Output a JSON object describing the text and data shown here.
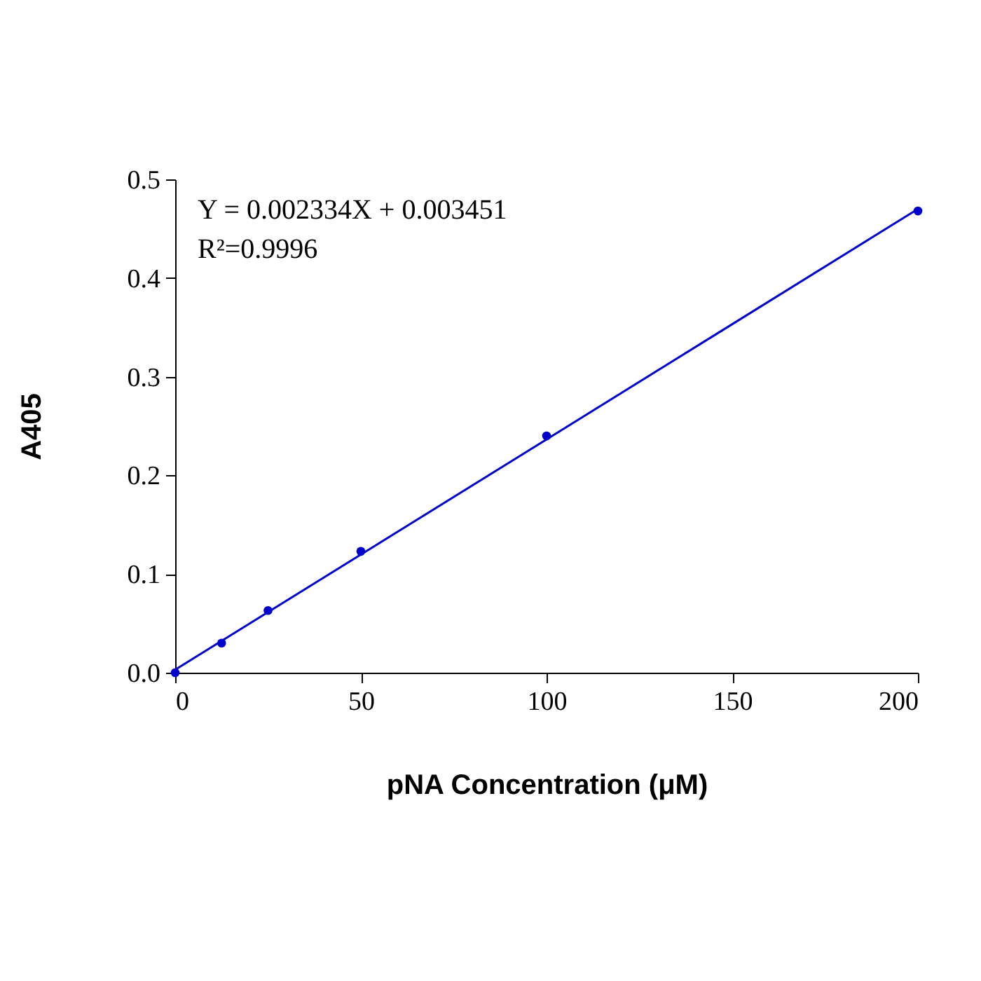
{
  "chart_data": {
    "type": "scatter",
    "xlabel": "pNA Concentration (μM)",
    "ylabel": "A405",
    "xlim": [
      0,
      200
    ],
    "xticks": [
      0,
      50,
      100,
      150,
      200
    ],
    "ylim": [
      0,
      0.5
    ],
    "yticks": [
      {
        "value": 0,
        "label": "0.0"
      },
      {
        "value": 0.1,
        "label": "0.1"
      },
      {
        "value": 0.2,
        "label": "0.2"
      },
      {
        "value": 0.3,
        "label": "0.3"
      },
      {
        "value": 0.4,
        "label": "0.4"
      },
      {
        "value": 0.5,
        "label": "0.5"
      }
    ],
    "grid": false,
    "series": [
      {
        "marker": "circle",
        "color": "#0000cc",
        "x": [
          0,
          12.5,
          25,
          50,
          100,
          200
        ],
        "values": [
          0,
          0.03,
          0.063,
          0.123,
          0.24,
          0.468
        ]
      },
      {
        "type": "line",
        "marker": "none",
        "color": "#0000cc",
        "x": [
          0,
          200
        ],
        "values": [
          0.003,
          0.47
        ]
      }
    ],
    "annotations": [
      "Y = 0.002334X + 0.003451",
      "R²=0.9996"
    ]
  }
}
